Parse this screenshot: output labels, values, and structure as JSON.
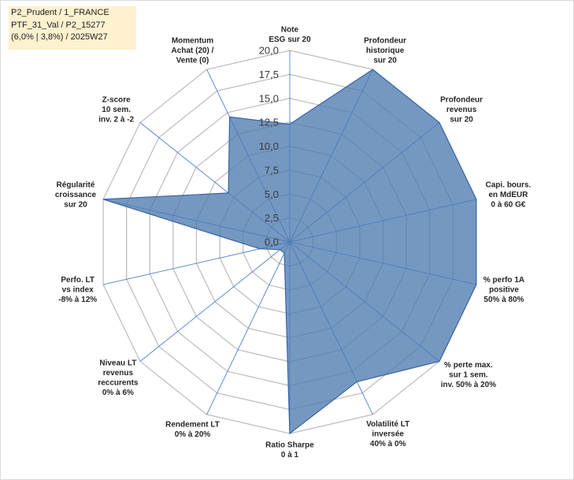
{
  "info_box": {
    "line1": "P2_Prudent / 1_FRANCE",
    "line2": "PTF_31_Val / P2_15277",
    "line3": "(6,0% | 3,8%) / 2025W27"
  },
  "colors": {
    "fill": "#4e7bb0",
    "stroke": "#3a64a8",
    "grid": "#bfbfbf",
    "spokes": "#4f7fd0"
  },
  "chart_data": {
    "type": "radar",
    "rmin": 0,
    "rmax": 20,
    "ticks": [
      "0,0",
      "2,5",
      "5,0",
      "7,5",
      "10,0",
      "12,5",
      "15,0",
      "17,5",
      "20,0"
    ],
    "tick_values": [
      0,
      2.5,
      5,
      7.5,
      10,
      12.5,
      15,
      17.5,
      20
    ],
    "axes": [
      {
        "lines": [
          "Note",
          "ESG sur 20"
        ],
        "value": 12.3
      },
      {
        "lines": [
          "Profondeur",
          "historique",
          "sur 20"
        ],
        "value": 20
      },
      {
        "lines": [
          "Profondeur",
          "revenus",
          "sur 20"
        ],
        "value": 20
      },
      {
        "lines": [
          "Capi. bours.",
          "en MdEUR",
          "0 à 60 G€"
        ],
        "value": 20
      },
      {
        "lines": [
          "% perfo 1A",
          "positive",
          "50% à 80%"
        ],
        "value": 20
      },
      {
        "lines": [
          "% perte max.",
          "sur 1 sem.",
          "inv. 50% à 20%"
        ],
        "value": 20
      },
      {
        "lines": [
          "Volatilité LT",
          "inversée",
          "40% à 0%"
        ],
        "value": 16.2
      },
      {
        "lines": [
          "Ratio Sharpe",
          "0 à 1"
        ],
        "value": 20
      },
      {
        "lines": [
          "Rendement LT",
          "0% à 20%"
        ],
        "value": 1.3
      },
      {
        "lines": [
          "Niveau LT",
          "revenus",
          "reccurents",
          "0% à 6%"
        ],
        "value": 1.3
      },
      {
        "lines": [
          "Perfo. LT",
          "vs index",
          "-8% à 12%"
        ],
        "value": 3.2
      },
      {
        "lines": [
          "Régularité",
          "croissance",
          "sur 20"
        ],
        "value": 20
      },
      {
        "lines": [
          "Z-score",
          "10 sem.",
          "inv. 2 à -2"
        ],
        "value": 8.2
      },
      {
        "lines": [
          "Momentum",
          "Achat (20) /",
          "Vente (0)"
        ],
        "value": 14.5
      }
    ]
  }
}
